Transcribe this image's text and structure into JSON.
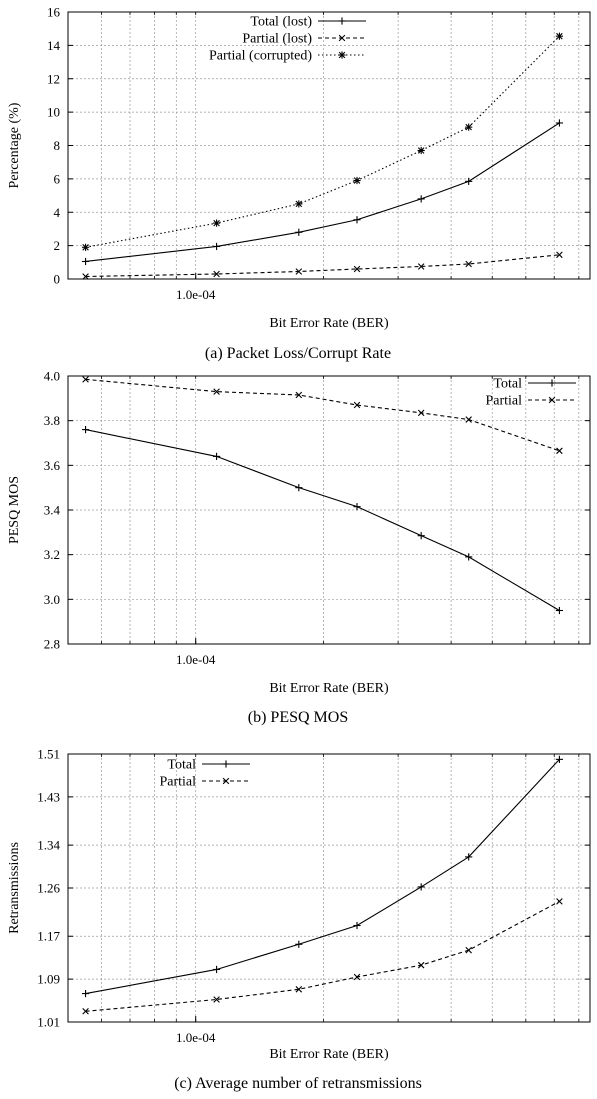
{
  "chart_data": [
    {
      "type": "line",
      "caption": "(a) Packet Loss/Corrupt Rate",
      "xlabel": "Bit Error Rate (BER)",
      "ylabel": "Percentage (%)",
      "xscale": "log",
      "xlim": [
        5e-05,
        0.00085
      ],
      "ylim": [
        0,
        16
      ],
      "yticks": [
        0,
        2,
        4,
        6,
        8,
        10,
        12,
        14,
        16
      ],
      "xtick_labels": [
        {
          "value": 0.0001,
          "label": "1.0e-04"
        }
      ],
      "grid": true,
      "legend_position": "top-center",
      "x": [
        5.5e-05,
        0.000112,
        0.000175,
        0.00024,
        0.00034,
        0.00044,
        0.00072
      ],
      "series": [
        {
          "name": "Total (lost)",
          "values": [
            1.05,
            1.95,
            2.8,
            3.55,
            4.8,
            5.85,
            9.35
          ],
          "style": "solid",
          "marker": "plus"
        },
        {
          "name": "Partial (lost)",
          "values": [
            0.15,
            0.3,
            0.45,
            0.6,
            0.75,
            0.9,
            1.45
          ],
          "style": "dashed",
          "marker": "x"
        },
        {
          "name": "Partial (corrupted)",
          "values": [
            1.9,
            3.35,
            4.5,
            5.9,
            7.7,
            9.1,
            14.55
          ],
          "style": "dotted",
          "marker": "star"
        }
      ]
    },
    {
      "type": "line",
      "caption": "(b) PESQ MOS",
      "xlabel": "Bit Error Rate (BER)",
      "ylabel": "PESQ MOS",
      "xscale": "log",
      "xlim": [
        5e-05,
        0.00085
      ],
      "ylim": [
        2.8,
        4.0
      ],
      "yticks": [
        2.8,
        3.0,
        3.2,
        3.4,
        3.6,
        3.8,
        4.0
      ],
      "ytick_labels": [
        "2.8",
        "3.0",
        "3.2",
        "3.4",
        "3.6",
        "3.8",
        "4.0"
      ],
      "xtick_labels": [
        {
          "value": 0.0001,
          "label": "1.0e-04"
        }
      ],
      "grid": true,
      "legend_position": "top-right",
      "x": [
        5.5e-05,
        0.000112,
        0.000175,
        0.00024,
        0.00034,
        0.00044,
        0.00072
      ],
      "series": [
        {
          "name": "Total",
          "values": [
            3.76,
            3.64,
            3.5,
            3.415,
            3.285,
            3.19,
            2.95
          ],
          "style": "solid",
          "marker": "plus"
        },
        {
          "name": "Partial",
          "values": [
            3.985,
            3.93,
            3.915,
            3.87,
            3.835,
            3.805,
            3.665
          ],
          "style": "dashed",
          "marker": "x"
        }
      ]
    },
    {
      "type": "line",
      "caption": "(c) Average number of retransmissions",
      "xlabel": "Bit Error Rate (BER)",
      "ylabel": "Retransmissions",
      "xscale": "log",
      "xlim": [
        5e-05,
        0.00085
      ],
      "ylim": [
        1.01,
        1.51
      ],
      "yticks": [
        1.01,
        1.09,
        1.17,
        1.26,
        1.34,
        1.43,
        1.51
      ],
      "ytick_labels": [
        "1.01",
        "1.09",
        "1.17",
        "1.26",
        "1.34",
        "1.43",
        "1.51"
      ],
      "xtick_labels": [
        {
          "value": 0.0001,
          "label": "1.0e-04"
        }
      ],
      "grid": true,
      "legend_position": "top-left",
      "x": [
        5.5e-05,
        0.000112,
        0.000175,
        0.00024,
        0.00034,
        0.00044,
        0.00072
      ],
      "series": [
        {
          "name": "Total",
          "values": [
            1.063,
            1.108,
            1.155,
            1.19,
            1.262,
            1.318,
            1.5
          ],
          "style": "solid",
          "marker": "plus"
        },
        {
          "name": "Partial",
          "values": [
            1.03,
            1.052,
            1.071,
            1.094,
            1.116,
            1.144,
            1.235
          ],
          "style": "dashed",
          "marker": "x"
        }
      ]
    }
  ]
}
